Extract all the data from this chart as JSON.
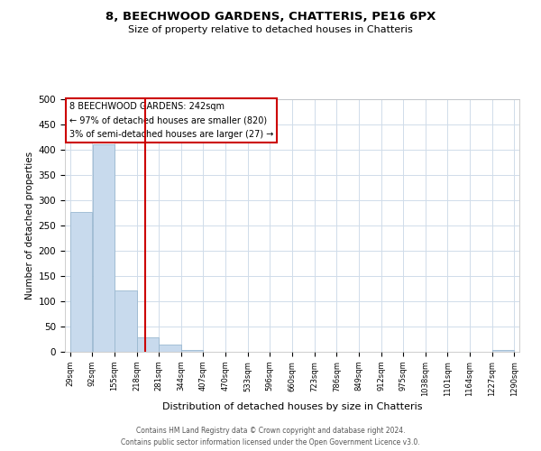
{
  "title": "8, BEECHWOOD GARDENS, CHATTERIS, PE16 6PX",
  "subtitle": "Size of property relative to detached houses in Chatteris",
  "xlabel": "Distribution of detached houses by size in Chatteris",
  "ylabel": "Number of detached properties",
  "bar_color": "#c8daed",
  "bar_edge_color": "#9ab8d0",
  "vline_x": 242,
  "vline_color": "#cc0000",
  "ylim": [
    0,
    500
  ],
  "yticks": [
    0,
    50,
    100,
    150,
    200,
    250,
    300,
    350,
    400,
    450,
    500
  ],
  "bin_edges": [
    29,
    92,
    155,
    218,
    281,
    344,
    407,
    470,
    533,
    596,
    660,
    723,
    786,
    849,
    912,
    975,
    1038,
    1101,
    1164,
    1227,
    1290
  ],
  "bar_heights": [
    277,
    410,
    122,
    29,
    15,
    3,
    0,
    0,
    0,
    0,
    0,
    0,
    0,
    0,
    0,
    0,
    0,
    0,
    0,
    3
  ],
  "annotation_text": "8 BEECHWOOD GARDENS: 242sqm\n← 97% of detached houses are smaller (820)\n3% of semi-detached houses are larger (27) →",
  "annotation_box_color": "#ffffff",
  "annotation_box_edge": "#cc0000",
  "footer_line1": "Contains HM Land Registry data © Crown copyright and database right 2024.",
  "footer_line2": "Contains public sector information licensed under the Open Government Licence v3.0.",
  "background_color": "#ffffff",
  "grid_color": "#d0dcea"
}
